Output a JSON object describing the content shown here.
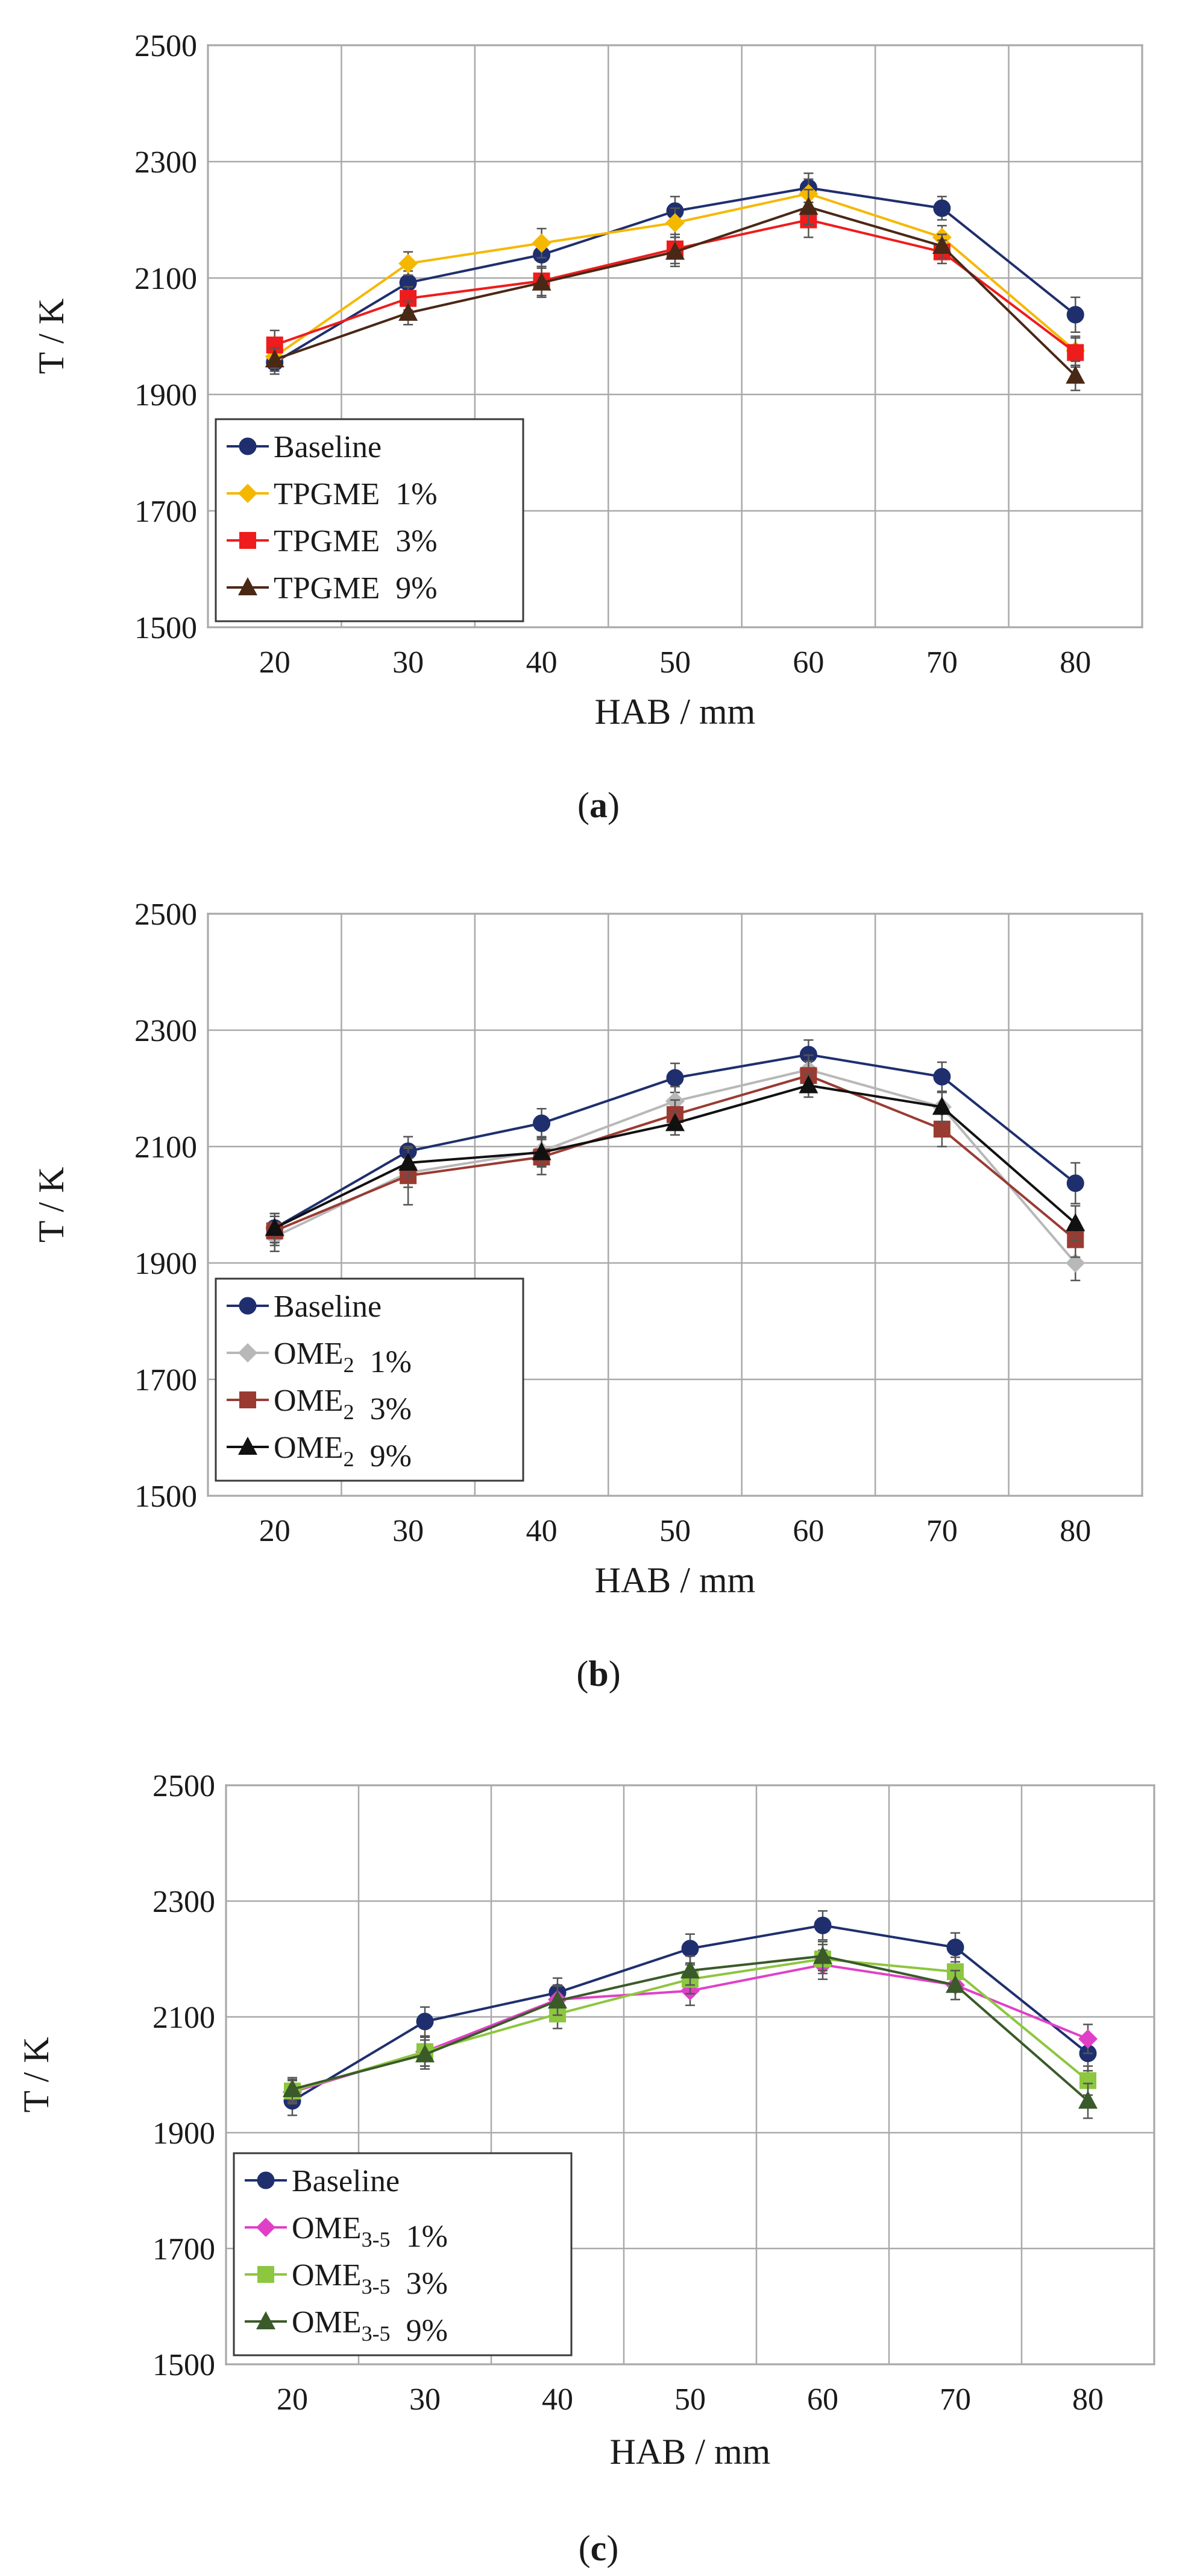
{
  "figure": {
    "panels": [
      {
        "label_open": "(",
        "label_letter": "a",
        "label_close": ")"
      },
      {
        "label_open": "(",
        "label_letter": "b",
        "label_close": ")"
      },
      {
        "label_open": "(",
        "label_letter": "c",
        "label_close": ")"
      }
    ]
  },
  "chart_data": [
    {
      "type": "line",
      "panel": "a",
      "xlabel": "HAB / mm",
      "ylabel": "T / K",
      "x": [
        20,
        30,
        40,
        50,
        60,
        70,
        80
      ],
      "xlim": [
        15,
        85
      ],
      "ylim": [
        1500,
        2500
      ],
      "yticks": [
        1500,
        1700,
        1900,
        2100,
        2300,
        2500
      ],
      "xticks": [
        20,
        30,
        40,
        50,
        60,
        70,
        80
      ],
      "grid": true,
      "legend_position": "bottom-left",
      "series": [
        {
          "name": "Baseline",
          "name_main": "Baseline",
          "name_sub": "",
          "name_pct": "",
          "marker": "circle",
          "color": "#1f2f6e",
          "values": [
            1955,
            2092,
            2140,
            2215,
            2255,
            2220,
            2037
          ],
          "errors": [
            20,
            20,
            20,
            25,
            25,
            20,
            30
          ]
        },
        {
          "name": "TPGME 1%",
          "name_main": "TPGME",
          "name_sub": "",
          "name_pct": "1%",
          "marker": "diamond",
          "color": "#f5b800",
          "values": [
            1965,
            2125,
            2160,
            2195,
            2245,
            2170,
            1975
          ],
          "errors": [
            20,
            20,
            25,
            25,
            25,
            20,
            25
          ]
        },
        {
          "name": "TPGME 3%",
          "name_main": "TPGME",
          "name_sub": "",
          "name_pct": "3%",
          "marker": "square",
          "color": "#ee1c1c",
          "values": [
            1985,
            2065,
            2095,
            2150,
            2200,
            2145,
            1972
          ],
          "errors": [
            25,
            20,
            25,
            25,
            30,
            20,
            25
          ]
        },
        {
          "name": "TPGME 9%",
          "name_main": "TPGME",
          "name_sub": "",
          "name_pct": "9%",
          "marker": "triangle",
          "color": "#4a2816",
          "values": [
            1960,
            2040,
            2092,
            2145,
            2222,
            2155,
            1932
          ],
          "errors": [
            20,
            20,
            25,
            25,
            30,
            20,
            25
          ]
        }
      ]
    },
    {
      "type": "line",
      "panel": "b",
      "xlabel": "HAB / mm",
      "ylabel": "T / K",
      "x": [
        20,
        30,
        40,
        50,
        60,
        70,
        80
      ],
      "xlim": [
        15,
        85
      ],
      "ylim": [
        1500,
        2500
      ],
      "yticks": [
        1500,
        1700,
        1900,
        2100,
        2300,
        2500
      ],
      "xticks": [
        20,
        30,
        40,
        50,
        60,
        70,
        80
      ],
      "grid": true,
      "legend_position": "bottom-left",
      "series": [
        {
          "name": "Baseline",
          "name_main": "Baseline",
          "name_sub": "",
          "name_pct": "",
          "marker": "circle",
          "color": "#1f2f6e",
          "values": [
            1960,
            2092,
            2140,
            2218,
            2258,
            2220,
            2037
          ],
          "errors": [
            25,
            25,
            25,
            25,
            25,
            25,
            35
          ]
        },
        {
          "name": "OME2 1%",
          "name_main": "OME",
          "name_sub": "2",
          "name_pct": "1%",
          "marker": "diamond",
          "color": "#b8b8b8",
          "values": [
            1945,
            2055,
            2092,
            2178,
            2232,
            2168,
            1900
          ],
          "errors": [
            25,
            25,
            25,
            25,
            25,
            25,
            30
          ]
        },
        {
          "name": "OME2 3%",
          "name_main": "OME",
          "name_sub": "2",
          "name_pct": "3%",
          "marker": "square",
          "color": "#9a3b32",
          "values": [
            1955,
            2050,
            2082,
            2155,
            2222,
            2130,
            1940
          ],
          "errors": [
            25,
            50,
            30,
            25,
            25,
            30,
            30
          ]
        },
        {
          "name": "OME2 9%",
          "name_main": "OME",
          "name_sub": "2",
          "name_pct": "9%",
          "marker": "triangle",
          "color": "#111111",
          "values": [
            1960,
            2072,
            2090,
            2140,
            2205,
            2168,
            1968
          ],
          "errors": [
            25,
            25,
            25,
            20,
            20,
            25,
            30
          ]
        }
      ]
    },
    {
      "type": "line",
      "panel": "c",
      "xlabel": "HAB / mm",
      "ylabel": "T / K",
      "x": [
        20,
        30,
        40,
        50,
        60,
        70,
        80
      ],
      "xlim": [
        15,
        85
      ],
      "ylim": [
        1500,
        2500
      ],
      "yticks": [
        1500,
        1700,
        1900,
        2100,
        2300,
        2500
      ],
      "xticks": [
        20,
        30,
        40,
        50,
        60,
        70,
        80
      ],
      "grid": true,
      "legend_position": "bottom-left",
      "series": [
        {
          "name": "Baseline",
          "name_main": "Baseline",
          "name_sub": "",
          "name_pct": "",
          "marker": "circle",
          "color": "#1f2f6e",
          "values": [
            1955,
            2092,
            2142,
            2218,
            2258,
            2220,
            2037
          ],
          "errors": [
            25,
            25,
            25,
            25,
            25,
            25,
            30
          ]
        },
        {
          "name": "OME3-5 1%",
          "name_main": "OME",
          "name_sub": "3-5",
          "name_pct": "1%",
          "marker": "diamond",
          "color": "#e040c8",
          "values": [
            1970,
            2040,
            2130,
            2145,
            2190,
            2155,
            2062
          ],
          "errors": [
            20,
            25,
            25,
            25,
            25,
            25,
            25
          ]
        },
        {
          "name": "OME3-5 3%",
          "name_main": "OME",
          "name_sub": "3-5",
          "name_pct": "3%",
          "marker": "square",
          "color": "#8dc63f",
          "values": [
            1972,
            2040,
            2105,
            2165,
            2200,
            2178,
            1990
          ],
          "errors": [
            20,
            25,
            25,
            25,
            25,
            25,
            25
          ]
        },
        {
          "name": "OME3-5 9%",
          "name_main": "OME",
          "name_sub": "3-5",
          "name_pct": "9%",
          "marker": "triangle",
          "color": "#3a5a2a",
          "values": [
            1975,
            2035,
            2128,
            2180,
            2205,
            2155,
            1955
          ],
          "errors": [
            20,
            25,
            25,
            25,
            25,
            25,
            30
          ]
        }
      ]
    }
  ]
}
